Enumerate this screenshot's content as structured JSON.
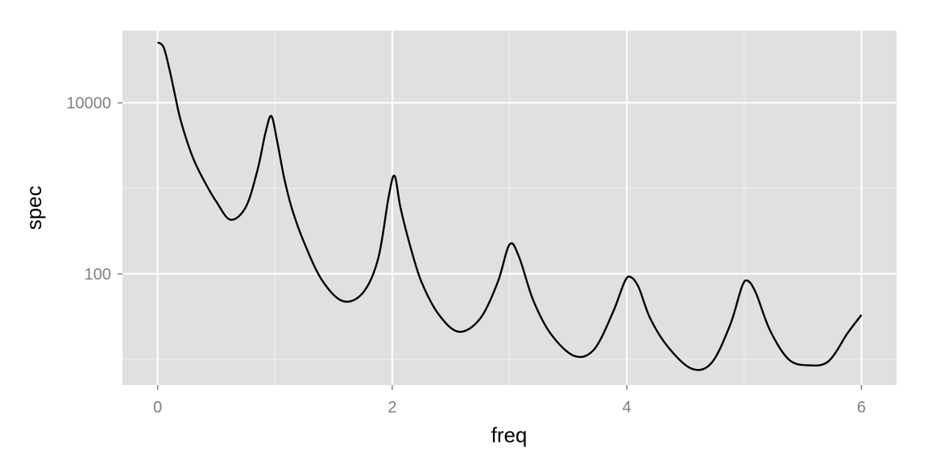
{
  "chart_data": {
    "type": "line",
    "title": "",
    "xlabel": "freq",
    "ylabel": "spec",
    "x_scale": "linear",
    "y_scale": "log10",
    "xlim": [
      -0.3,
      6.3
    ],
    "ylim": [
      5,
      70000
    ],
    "x_ticks": [
      0,
      2,
      4,
      6
    ],
    "x_tick_labels": [
      "0",
      "2",
      "4",
      "6"
    ],
    "x_minor_ticks": [
      1,
      3,
      5
    ],
    "y_ticks": [
      100,
      10000
    ],
    "y_tick_labels": [
      "100",
      "10000"
    ],
    "y_minor_ticks": [
      10,
      1000
    ],
    "grid": true,
    "legend": "none",
    "colors": {
      "panel_background": "#e0e0e0",
      "grid_major": "#ffffff",
      "grid_minor": "#f0f0f0",
      "line": "#000000",
      "tick_text": "#7f7f7f",
      "axis_title_text": "#000000"
    },
    "series": [
      {
        "x": [
          0.0,
          0.05,
          0.1,
          0.15,
          0.2,
          0.3,
          0.4,
          0.5,
          0.62,
          0.75,
          0.85,
          0.92,
          0.97,
          1.02,
          1.08,
          1.15,
          1.25,
          1.4,
          1.58,
          1.75,
          1.88,
          1.97,
          2.02,
          2.07,
          2.15,
          2.25,
          2.4,
          2.57,
          2.75,
          2.9,
          3.0,
          3.08,
          3.2,
          3.35,
          3.55,
          3.72,
          3.88,
          3.98,
          4.03,
          4.1,
          4.2,
          4.35,
          4.55,
          4.72,
          4.88,
          4.98,
          5.03,
          5.1,
          5.22,
          5.38,
          5.55,
          5.72,
          5.88,
          6.0
        ],
        "values": [
          51000,
          45000,
          25000,
          12000,
          6000,
          2300,
          1200,
          700,
          430,
          600,
          1600,
          4500,
          7000,
          3500,
          1300,
          550,
          230,
          85,
          48,
          60,
          150,
          800,
          1400,
          600,
          220,
          80,
          33,
          21,
          30,
          80,
          220,
          160,
          50,
          20,
          11,
          13,
          35,
          80,
          92,
          70,
          30,
          14,
          7.8,
          9,
          25,
          70,
          83,
          60,
          22,
          10,
          8.5,
          9.5,
          20,
          33
        ]
      }
    ]
  }
}
